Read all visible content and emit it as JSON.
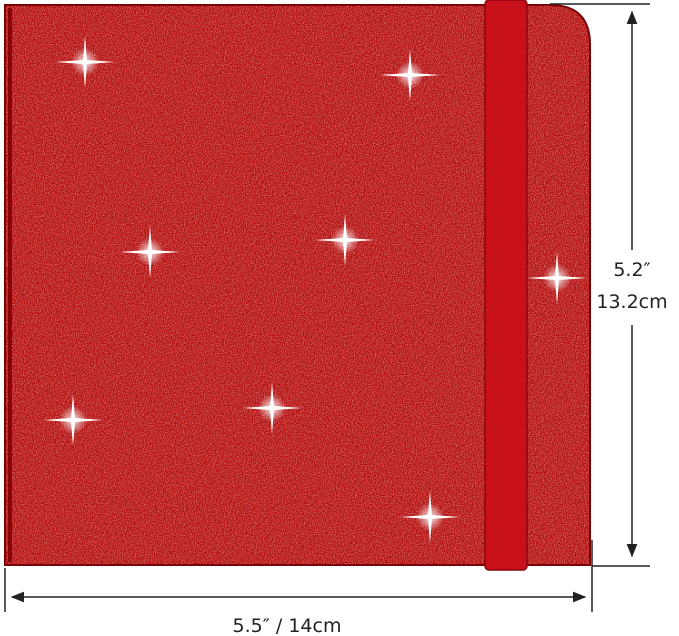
{
  "dimensions": {
    "height_inches": "5.2″",
    "height_cm": "13.2cm",
    "width": "5.5″ / 14cm"
  }
}
